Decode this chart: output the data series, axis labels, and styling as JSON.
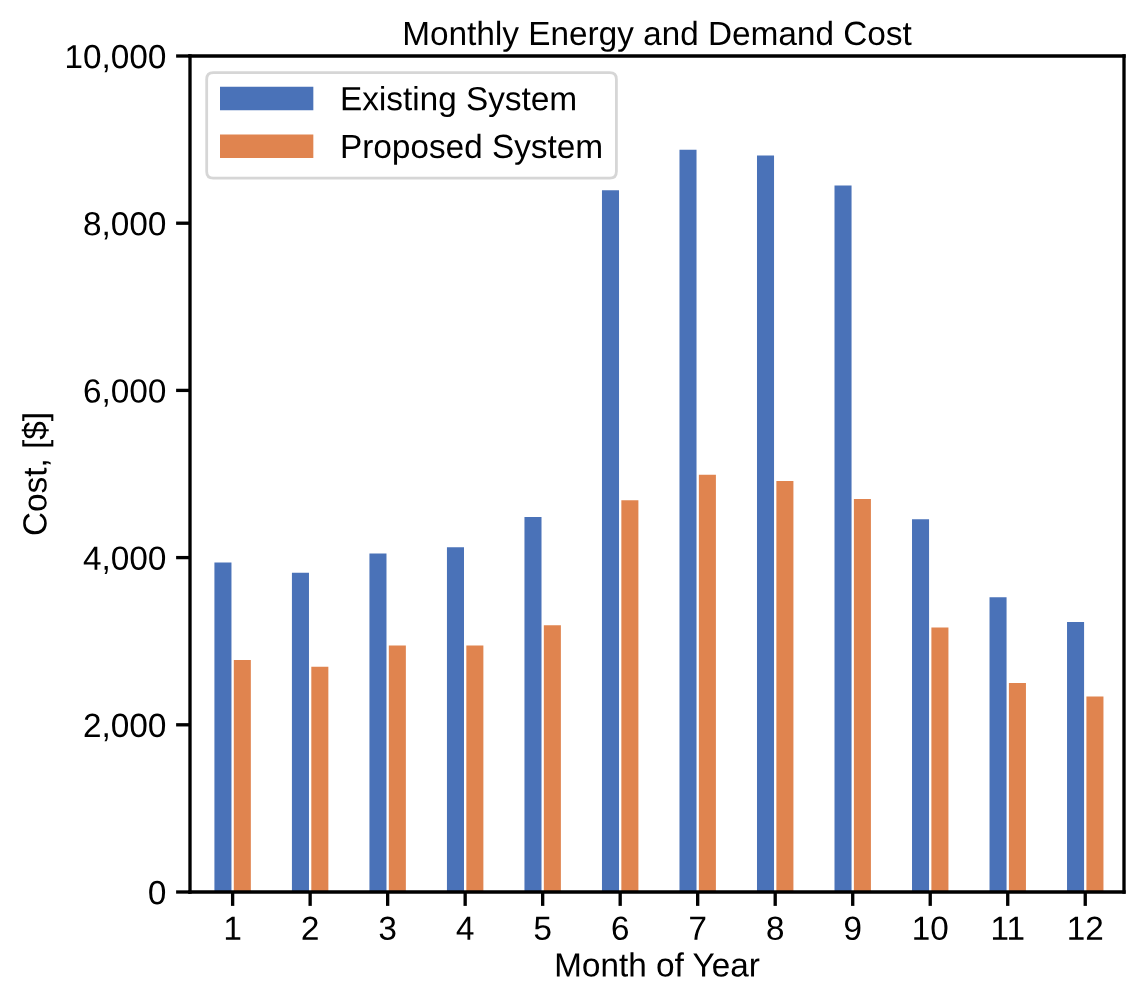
{
  "chart_data": {
    "type": "bar",
    "title": "Monthly Energy and Demand Cost",
    "xlabel": "Month of Year",
    "ylabel": "Cost, [$]",
    "categories": [
      "1",
      "2",
      "3",
      "4",
      "5",
      "6",
      "7",
      "8",
      "9",
      "10",
      "11",
      "12"
    ],
    "series": [
      {
        "name": "Existing System",
        "color": "#4a72b8",
        "values": [
          3940,
          3820,
          4050,
          4125,
          4485,
          8395,
          8880,
          8810,
          8450,
          4460,
          3525,
          3230
        ]
      },
      {
        "name": "Proposed System",
        "color": "#e0844f",
        "values": [
          2775,
          2695,
          2950,
          2950,
          3190,
          4685,
          4990,
          4915,
          4700,
          3165,
          2500,
          2340
        ]
      }
    ],
    "ylim": [
      0,
      10000
    ],
    "yticks": [
      {
        "value": 0,
        "label": "0"
      },
      {
        "value": 2000,
        "label": "2,000"
      },
      {
        "value": 4000,
        "label": "4,000"
      },
      {
        "value": 6000,
        "label": "6,000"
      },
      {
        "value": 8000,
        "label": "8,000"
      },
      {
        "value": 10000,
        "label": "10,000"
      }
    ],
    "grid": false,
    "legend": "top left"
  }
}
